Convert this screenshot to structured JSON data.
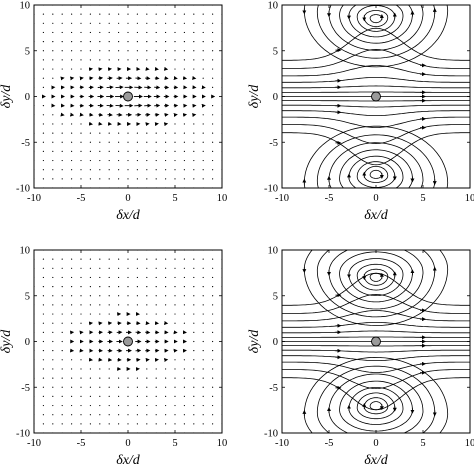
{
  "chart_data": [
    {
      "type": "quiver",
      "panel": "top-left",
      "xlabel": "δx/d",
      "ylabel": "δy/d",
      "xlim": [
        -10,
        10
      ],
      "ylim": [
        -10,
        10
      ],
      "xticks": [
        "-10",
        "-5",
        "0",
        "5",
        "10"
      ],
      "yticks": [
        "-10",
        "-5",
        "0",
        "5",
        "10"
      ],
      "particle": {
        "x": 0,
        "y": 0
      },
      "grid_step": 1,
      "field_strength": 1.0
    },
    {
      "type": "streamlines",
      "panel": "top-right",
      "xlabel": "δx/d",
      "ylabel": "δy/d",
      "xlim": [
        -10,
        10
      ],
      "ylim": [
        -10,
        10
      ],
      "xticks": [
        "-10",
        "-5",
        "0",
        "5",
        "10"
      ],
      "yticks": [
        "-10",
        "-5",
        "0",
        "5",
        "10"
      ],
      "particle": {
        "x": 0,
        "y": 0
      },
      "vortex_centers": [
        {
          "x": 0,
          "y": 8.5
        },
        {
          "x": 0,
          "y": -8.5
        }
      ]
    },
    {
      "type": "quiver",
      "panel": "bottom-left",
      "xlabel": "δx/d",
      "ylabel": "δy/d",
      "xlim": [
        -10,
        10
      ],
      "ylim": [
        -10,
        10
      ],
      "xticks": [
        "-10",
        "-5",
        "0",
        "5",
        "10"
      ],
      "yticks": [
        "-10",
        "-5",
        "0",
        "5",
        "10"
      ],
      "particle": {
        "x": 0,
        "y": 0
      },
      "grid_step": 1,
      "field_strength": 0.6
    },
    {
      "type": "streamlines",
      "panel": "bottom-right",
      "xlabel": "δx/d",
      "ylabel": "δy/d",
      "xlim": [
        -10,
        10
      ],
      "ylim": [
        -10,
        10
      ],
      "xticks": [
        "-10",
        "-5",
        "0",
        "5",
        "10"
      ],
      "yticks": [
        "-10",
        "-5",
        "0",
        "5",
        "10"
      ],
      "particle": {
        "x": 0,
        "y": 0
      },
      "vortex_centers": [
        {
          "x": 0,
          "y": 7
        },
        {
          "x": 0,
          "y": -7
        }
      ]
    }
  ]
}
